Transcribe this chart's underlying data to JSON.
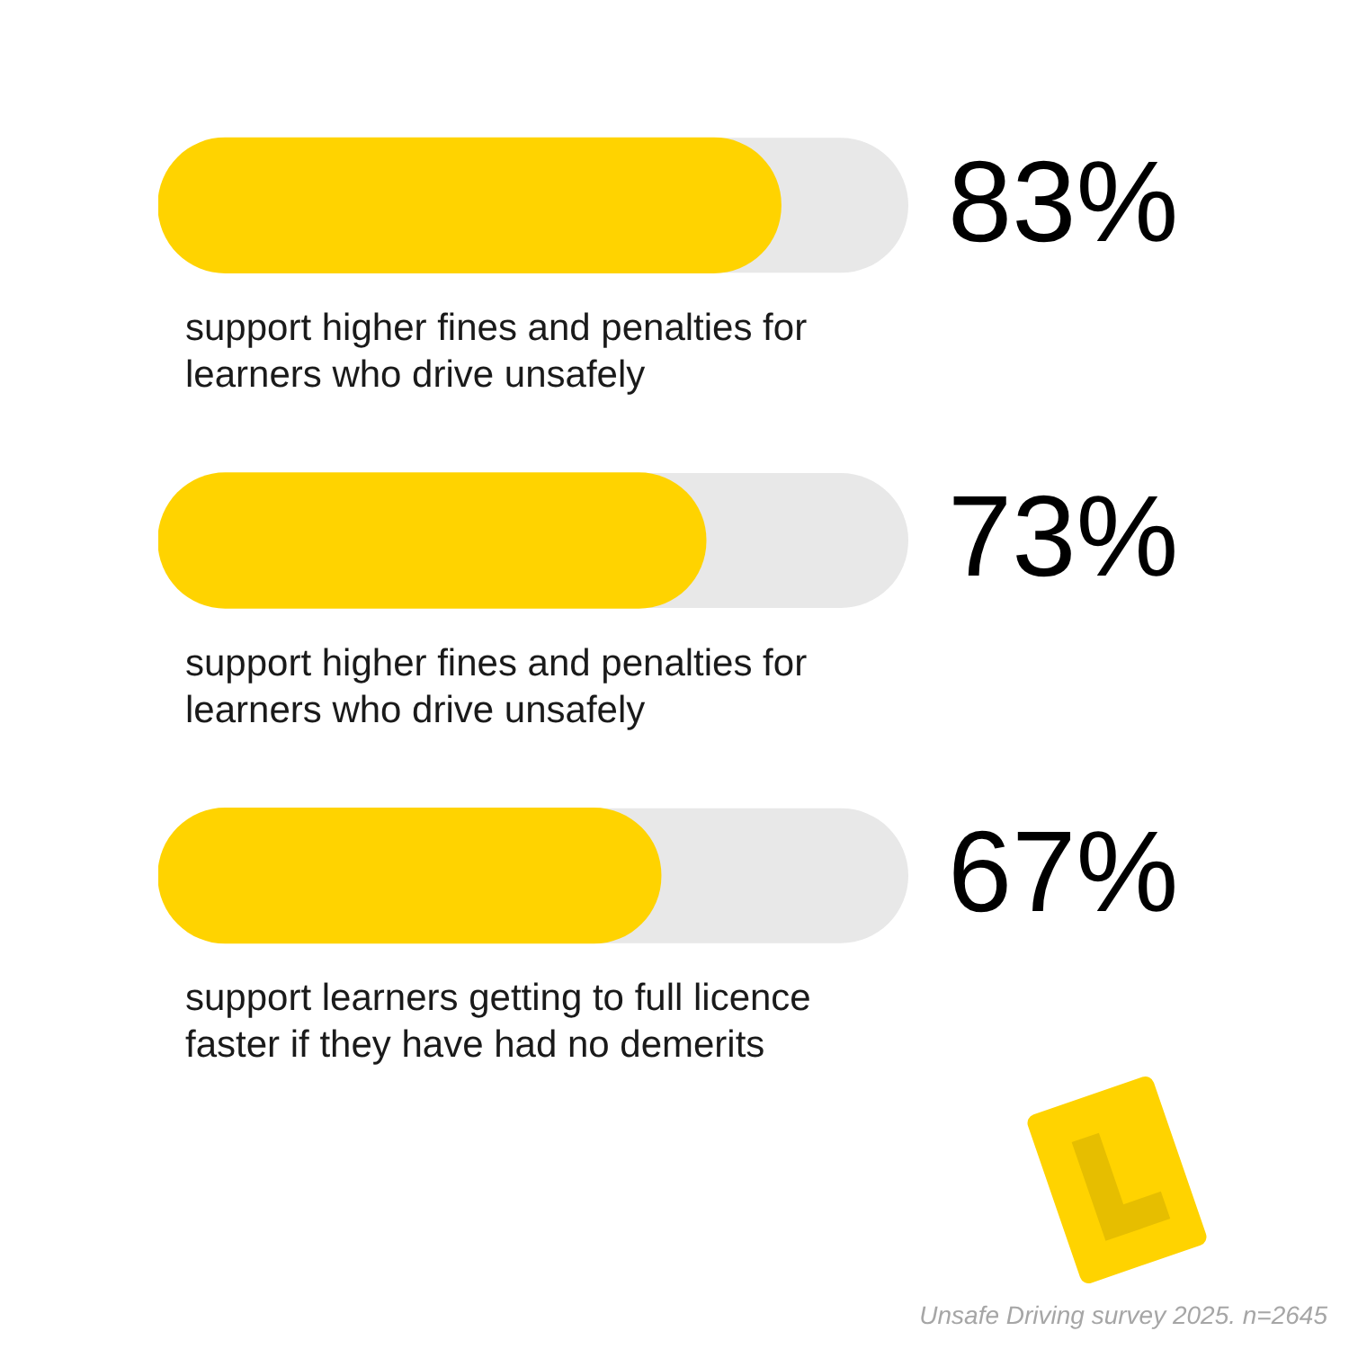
{
  "chart_data": {
    "type": "bar",
    "orientation": "horizontal",
    "categories": [
      "support higher fines and penalties for learners who drive unsafely",
      "support higher fines and penalties for learners who drive unsafely",
      "support learners getting to full licence faster if they have had no demerits"
    ],
    "values": [
      83,
      73,
      67
    ],
    "color": "#ffd300",
    "value_labels": [
      "83%",
      "73%",
      "67%"
    ],
    "xlim": [
      0,
      100
    ],
    "tick_labels": "y",
    "annotations": [
      "Unsafe Driving survey 2025. n=2645"
    ]
  }
}
